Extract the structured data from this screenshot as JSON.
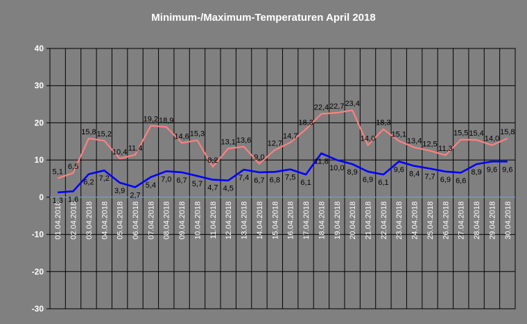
{
  "chart_data": {
    "type": "line",
    "title": "Minimum-/Maximum-Temperaturen April 2018",
    "xlabel": "",
    "ylabel": "",
    "ylim": [
      -30,
      40
    ],
    "yticks": [
      -30,
      -20,
      -10,
      0,
      10,
      20,
      30,
      40
    ],
    "grid": true,
    "legend": "none",
    "categories": [
      "01.04.2018",
      "02.04.2018",
      "03.04.2018",
      "04.04.2018",
      "05.04.2018",
      "06.04.2018",
      "07.04.2018",
      "08.04.2018",
      "09.04.2018",
      "10.04.2018",
      "11.04.2018",
      "12.04.2018",
      "13.04.2018",
      "14.04.2018",
      "15.04.2018",
      "16.04.2018",
      "17.04.2018",
      "18.04.2018",
      "19.04.2018",
      "20.04.2018",
      "21.04.2018",
      "22.04.2018",
      "23.04.2018",
      "24.04.2018",
      "25.04.2018",
      "26.04.2018",
      "27.04.2018",
      "28.04.2018",
      "29.04.2018",
      "30.04.2018"
    ],
    "series": [
      {
        "key": "max",
        "color": "#ff8080",
        "values": [
          5.1,
          6.5,
          15.8,
          15.2,
          10.4,
          11.4,
          19.2,
          18.9,
          14.6,
          15.3,
          8.2,
          13.1,
          13.6,
          9.0,
          12.7,
          14.7,
          18.3,
          22.4,
          22.7,
          23.4,
          14.0,
          18.3,
          15.1,
          13.4,
          12.5,
          11.3,
          15.5,
          15.4,
          14.0,
          15.8
        ],
        "labels": [
          "5,1",
          "6,5",
          "15,8",
          "15,2",
          "10,4",
          "11,4",
          "19,2",
          "18,9",
          "14,6",
          "15,3",
          "8,2",
          "13,1",
          "13,6",
          "9,0",
          "12,7",
          "14,7",
          "18,3",
          "22,4",
          "22,7",
          "23,4",
          "14,0",
          "18,3",
          "15,1",
          "13,4",
          "12,5",
          "11,3",
          "15,5",
          "15,4",
          "14,0",
          "15,8"
        ]
      },
      {
        "key": "min",
        "color": "#0000ff",
        "values": [
          1.3,
          1.6,
          6.2,
          7.2,
          3.9,
          2.7,
          5.4,
          7.0,
          6.7,
          5.7,
          4.7,
          4.5,
          7.4,
          6.7,
          6.8,
          7.5,
          6.1,
          11.8,
          10.0,
          8.9,
          6.9,
          6.1,
          9.6,
          8.4,
          7.7,
          6.9,
          6.6,
          8.9,
          9.6,
          9.6
        ],
        "labels": [
          "1,3",
          "1,6",
          "6,2",
          "7,2",
          "3,9",
          "2,7",
          "5,4",
          "7,0",
          "6,7",
          "5,7",
          "4,7",
          "4,5",
          "7,4",
          "6,7",
          "6,8",
          "7,5",
          "6,1",
          "11,8",
          "10,0",
          "8,9",
          "6,9",
          "6,1",
          "9,6",
          "8,4",
          "7,7",
          "6,9",
          "6,6",
          "8,9",
          "9,6",
          "9,6"
        ]
      }
    ]
  }
}
